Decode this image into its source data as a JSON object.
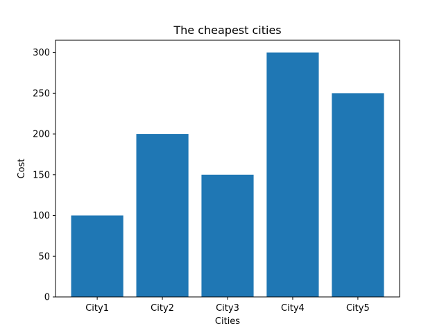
{
  "chart_data": {
    "type": "bar",
    "title": "The cheapest cities",
    "xlabel": "Cities",
    "ylabel": "Cost",
    "categories": [
      "City1",
      "City2",
      "City3",
      "City4",
      "City5"
    ],
    "values": [
      100,
      200,
      150,
      300,
      250
    ],
    "ylim": [
      0,
      315
    ],
    "yticks": [
      0,
      50,
      100,
      150,
      200,
      250,
      300
    ],
    "grid": false,
    "bar_color": "#1f77b4"
  }
}
